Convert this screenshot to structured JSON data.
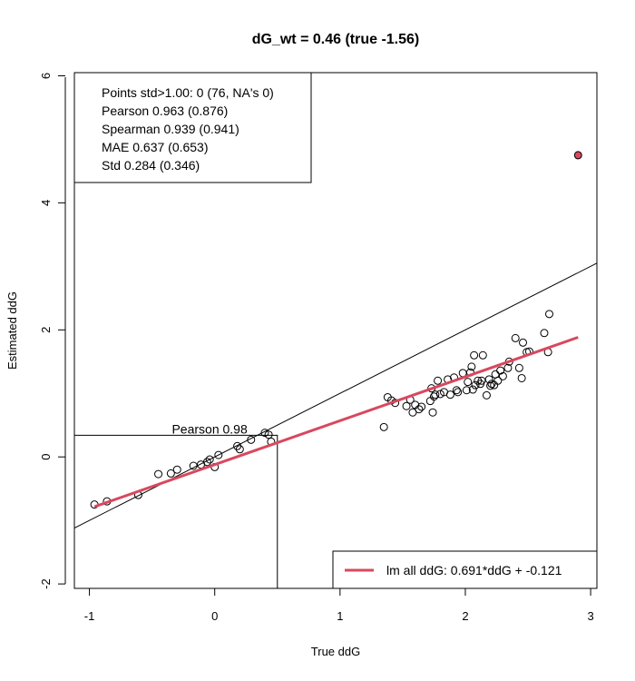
{
  "chart_data": {
    "type": "scatter",
    "title": "dG_wt = 0.46 (true -1.56)",
    "xlabel": "True ddG",
    "ylabel": "Estimated ddG",
    "xlim": [
      -1.12,
      3.05
    ],
    "ylim": [
      -2.07,
      6.05
    ],
    "x_ticks": [
      "-1",
      "0",
      "1",
      "2",
      "3"
    ],
    "y_ticks": [
      "-2",
      "0",
      "2",
      "4",
      "6"
    ],
    "stats_box": {
      "lines": [
        "Points std>1.00: 0 (76, NA's 0)",
        "Pearson 0.963 (0.876)",
        "Spearman 0.939 (0.941)",
        "MAE 0.637 (0.653)",
        "Std 0.284 (0.346)"
      ]
    },
    "sub_box": {
      "label": "Pearson 0.98",
      "x_range": [
        -1.12,
        0.5
      ],
      "y_top": 0.34
    },
    "points": [
      {
        "x": -0.96,
        "y": -0.75
      },
      {
        "x": -0.86,
        "y": -0.7
      },
      {
        "x": -0.61,
        "y": -0.6
      },
      {
        "x": -0.45,
        "y": -0.27
      },
      {
        "x": -0.35,
        "y": -0.26
      },
      {
        "x": -0.3,
        "y": -0.2
      },
      {
        "x": -0.17,
        "y": -0.14
      },
      {
        "x": -0.11,
        "y": -0.12
      },
      {
        "x": -0.06,
        "y": -0.08
      },
      {
        "x": -0.04,
        "y": -0.04
      },
      {
        "x": 0.0,
        "y": -0.16
      },
      {
        "x": 0.03,
        "y": 0.03
      },
      {
        "x": 0.18,
        "y": 0.17
      },
      {
        "x": 0.2,
        "y": 0.12
      },
      {
        "x": 0.29,
        "y": 0.27
      },
      {
        "x": 0.4,
        "y": 0.38
      },
      {
        "x": 0.43,
        "y": 0.35
      },
      {
        "x": 0.45,
        "y": 0.24
      },
      {
        "x": 1.35,
        "y": 0.47
      },
      {
        "x": 1.38,
        "y": 0.94
      },
      {
        "x": 1.41,
        "y": 0.89
      },
      {
        "x": 1.44,
        "y": 0.85
      },
      {
        "x": 1.53,
        "y": 0.8
      },
      {
        "x": 1.56,
        "y": 0.9
      },
      {
        "x": 1.58,
        "y": 0.7
      },
      {
        "x": 1.6,
        "y": 0.82
      },
      {
        "x": 1.63,
        "y": 0.75
      },
      {
        "x": 1.65,
        "y": 0.79
      },
      {
        "x": 1.72,
        "y": 0.88
      },
      {
        "x": 1.73,
        "y": 1.08
      },
      {
        "x": 1.74,
        "y": 0.7
      },
      {
        "x": 1.75,
        "y": 0.95
      },
      {
        "x": 1.76,
        "y": 0.98
      },
      {
        "x": 1.78,
        "y": 1.2
      },
      {
        "x": 1.8,
        "y": 0.99
      },
      {
        "x": 1.83,
        "y": 1.02
      },
      {
        "x": 1.86,
        "y": 1.22
      },
      {
        "x": 1.88,
        "y": 0.98
      },
      {
        "x": 1.91,
        "y": 1.25
      },
      {
        "x": 1.93,
        "y": 1.05
      },
      {
        "x": 1.94,
        "y": 1.02
      },
      {
        "x": 1.98,
        "y": 1.32
      },
      {
        "x": 2.01,
        "y": 1.05
      },
      {
        "x": 2.02,
        "y": 1.18
      },
      {
        "x": 2.04,
        "y": 1.33
      },
      {
        "x": 2.05,
        "y": 1.42
      },
      {
        "x": 2.06,
        "y": 1.06
      },
      {
        "x": 2.07,
        "y": 1.6
      },
      {
        "x": 2.08,
        "y": 1.13
      },
      {
        "x": 2.1,
        "y": 1.2
      },
      {
        "x": 2.12,
        "y": 1.15
      },
      {
        "x": 2.13,
        "y": 1.2
      },
      {
        "x": 2.14,
        "y": 1.6
      },
      {
        "x": 2.17,
        "y": 0.97
      },
      {
        "x": 2.19,
        "y": 1.22
      },
      {
        "x": 2.2,
        "y": 1.12
      },
      {
        "x": 2.21,
        "y": 1.15
      },
      {
        "x": 2.23,
        "y": 1.13
      },
      {
        "x": 2.24,
        "y": 1.3
      },
      {
        "x": 2.26,
        "y": 1.2
      },
      {
        "x": 2.28,
        "y": 1.36
      },
      {
        "x": 2.3,
        "y": 1.27
      },
      {
        "x": 2.34,
        "y": 1.4
      },
      {
        "x": 2.35,
        "y": 1.5
      },
      {
        "x": 2.4,
        "y": 1.87
      },
      {
        "x": 2.43,
        "y": 1.4
      },
      {
        "x": 2.45,
        "y": 1.24
      },
      {
        "x": 2.46,
        "y": 1.8
      },
      {
        "x": 2.49,
        "y": 1.65
      },
      {
        "x": 2.51,
        "y": 1.66
      },
      {
        "x": 2.63,
        "y": 1.95
      },
      {
        "x": 2.66,
        "y": 1.65
      },
      {
        "x": 2.67,
        "y": 2.25
      }
    ],
    "outlier": {
      "x": 2.9,
      "y": 4.75,
      "color": "#d8485f"
    },
    "identity_line": {
      "slope": 1,
      "intercept": 0
    },
    "fit_line": {
      "x_from": -0.96,
      "x_to": 2.9,
      "slope": 0.691,
      "intercept": -0.121,
      "color": "#d8485f"
    },
    "legend": {
      "label": "lm all ddG: 0.691*ddG + -0.121",
      "position": "bottom-right",
      "color": "#d8485f"
    },
    "grid": false
  }
}
